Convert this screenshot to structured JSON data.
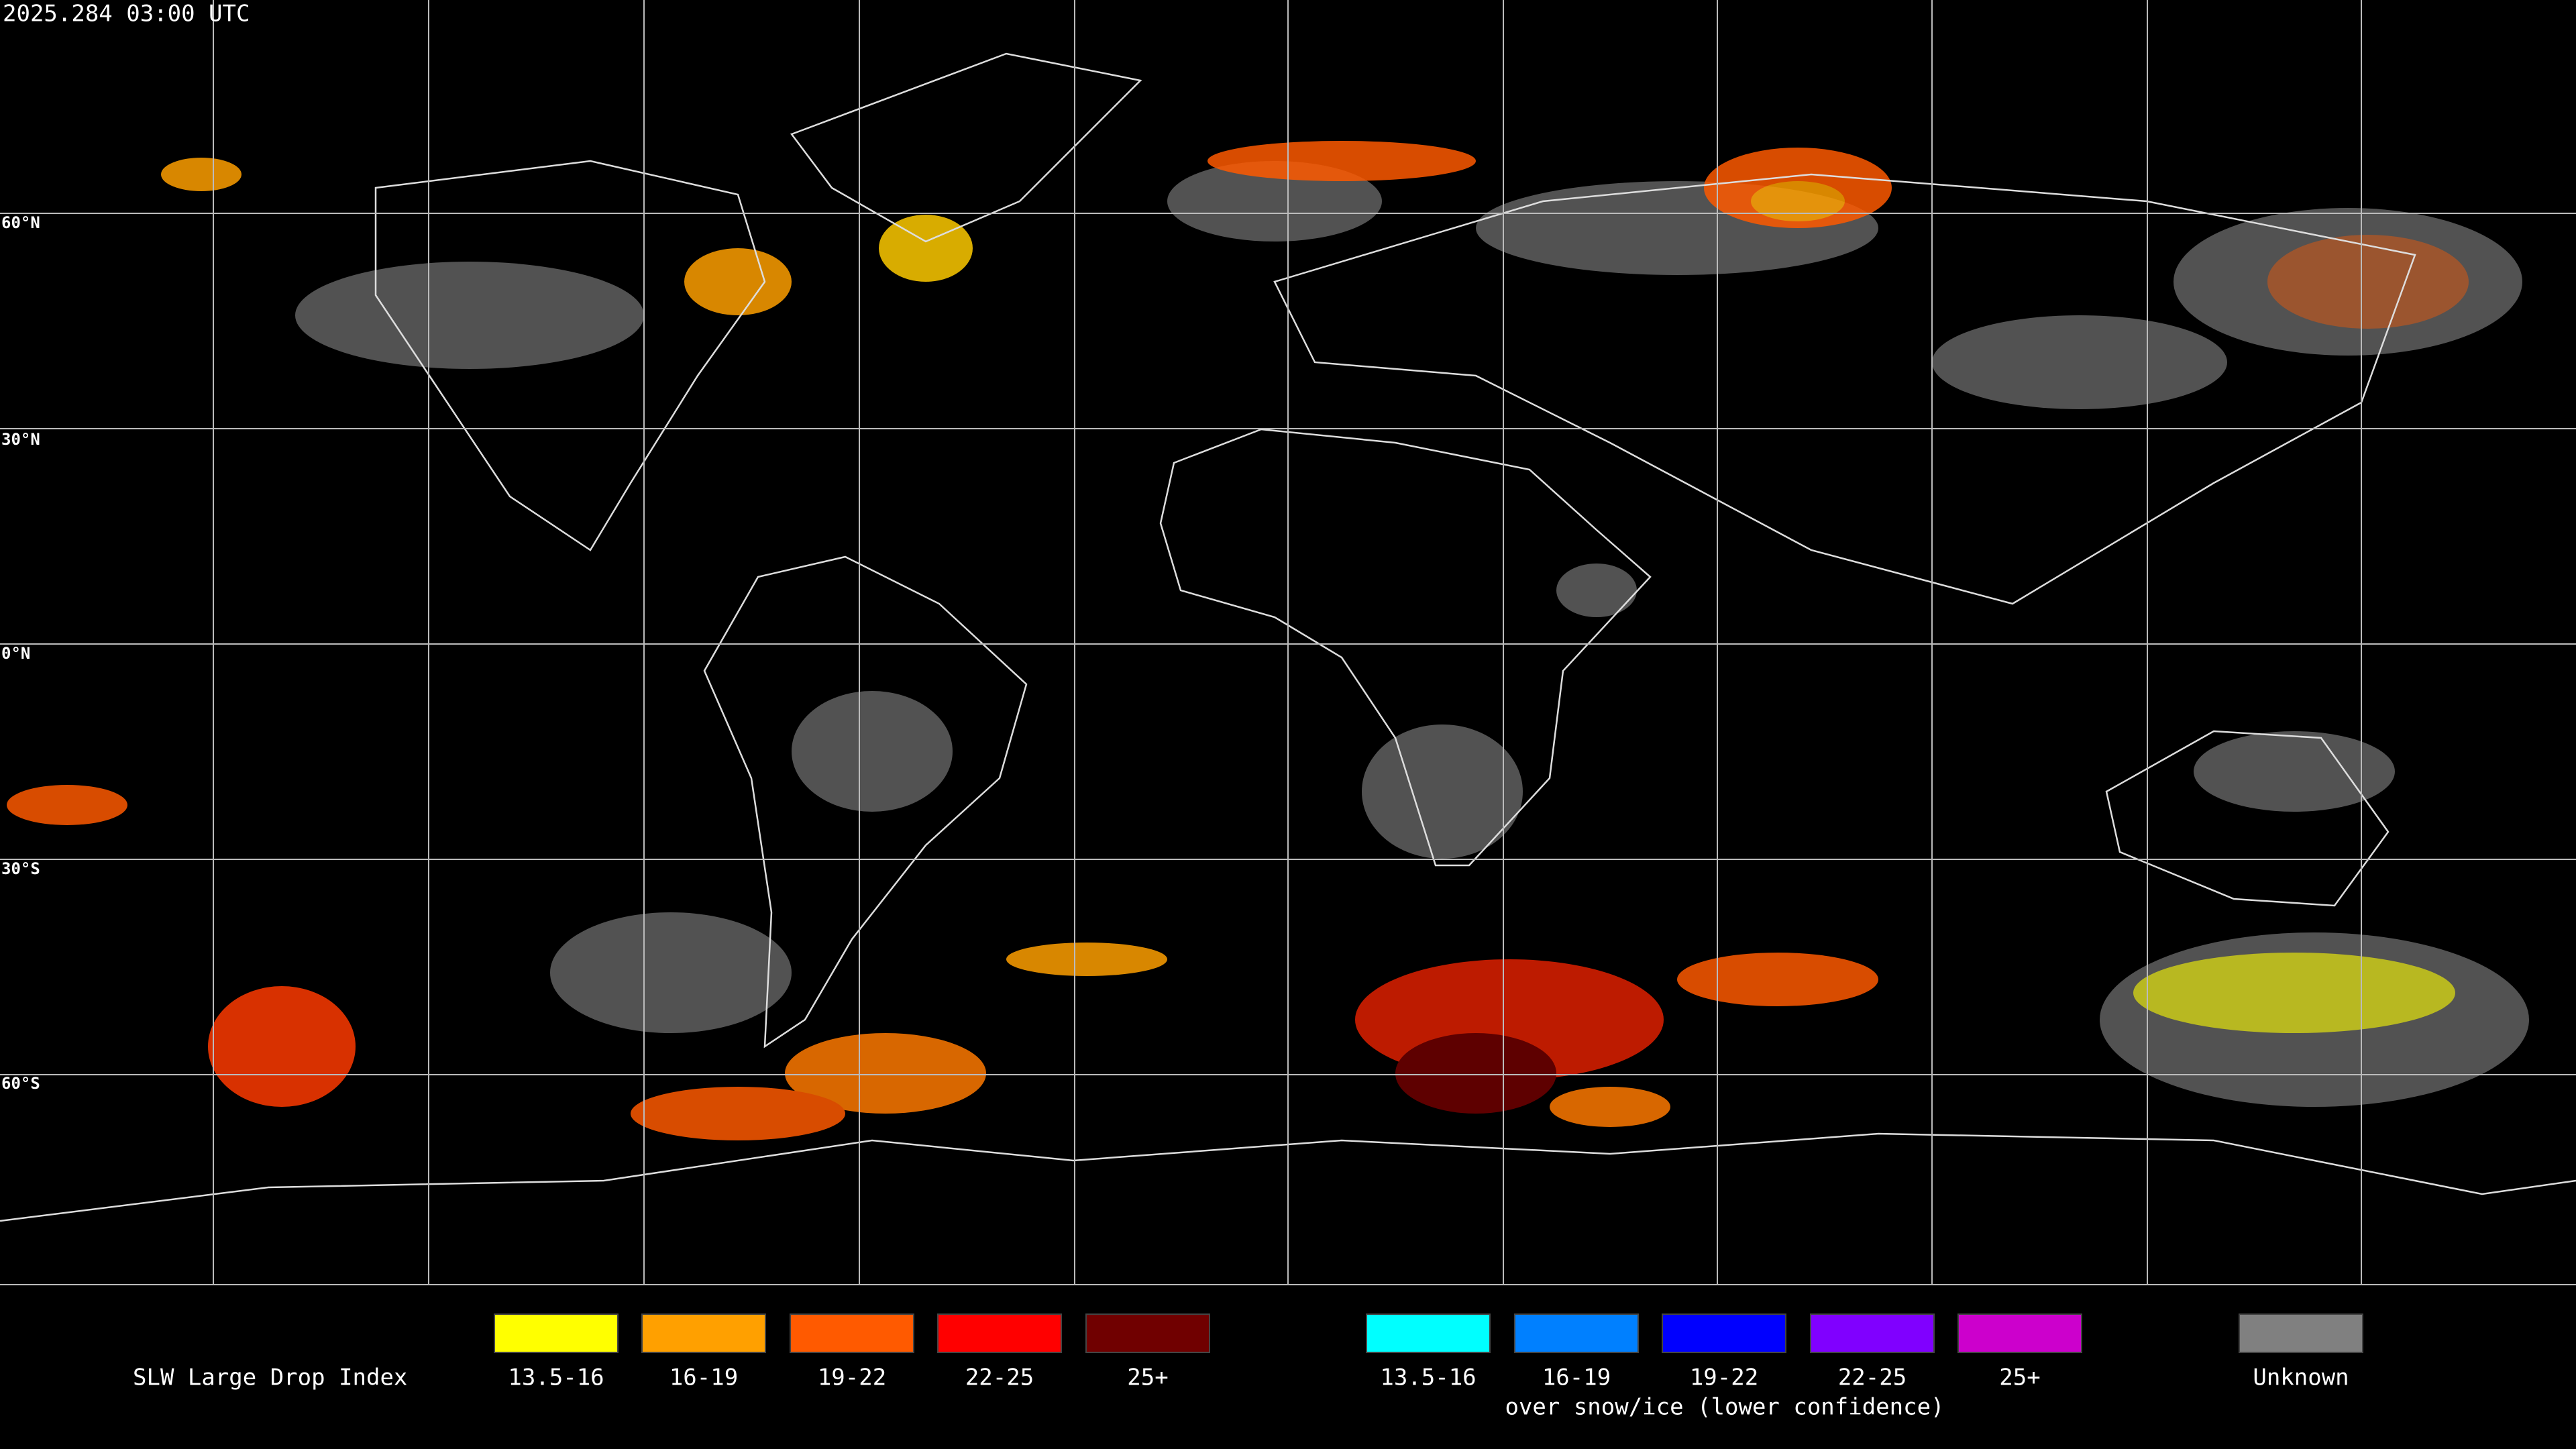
{
  "header": {
    "timestamp": "2025.284 03:00 UTC"
  },
  "latitude_labels": [
    "60°N",
    "30°N",
    "0°N",
    "30°S",
    "60°S"
  ],
  "legend": {
    "title": "SLW Large Drop Index",
    "items": [
      {
        "label": "13.5-16",
        "color": "#ffff00"
      },
      {
        "label": "16-19",
        "color": "#ffa000"
      },
      {
        "label": "19-22",
        "color": "#ff5a00"
      },
      {
        "label": "22-25",
        "color": "#ff0000"
      },
      {
        "label": "25+",
        "color": "#700000"
      }
    ],
    "snow_items": [
      {
        "label": "13.5-16",
        "color": "#00ffff"
      },
      {
        "label": "16-19",
        "color": "#0080ff"
      },
      {
        "label": "19-22",
        "color": "#0000ff"
      },
      {
        "label": "22-25",
        "color": "#8000ff"
      },
      {
        "label": "25+",
        "color": "#cc00cc"
      }
    ],
    "snow_note": "over snow/ice (lower confidence)",
    "unknown": {
      "label": "Unknown",
      "color": "#808080"
    }
  }
}
